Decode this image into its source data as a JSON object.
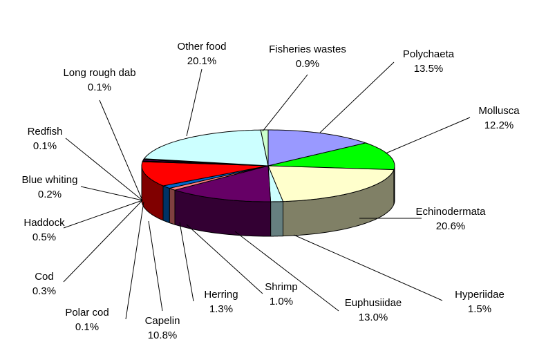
{
  "chart_data": {
    "type": "pie",
    "style": "3d",
    "start": "top",
    "direction": "clockwise",
    "legend": "none",
    "slices": [
      {
        "label": "Polychaeta",
        "value": 13.5,
        "display": "13.5%",
        "color": "#9999ff"
      },
      {
        "label": "Mollusca",
        "value": 12.2,
        "display": "12.2%",
        "color": "#00ff00"
      },
      {
        "label": "Echinodermata",
        "value": 20.6,
        "display": "20.6%",
        "color": "#ffffcc"
      },
      {
        "label": "Hyperiidae",
        "value": 1.5,
        "display": "1.5%",
        "color": "#ccffff"
      },
      {
        "label": "Euphusiidae",
        "value": 13.0,
        "display": "13.0%",
        "color": "#660066"
      },
      {
        "label": "Shrimp",
        "value": 1.0,
        "display": "1.0%",
        "color": "#ff8080"
      },
      {
        "label": "Herring",
        "value": 1.3,
        "display": "1.3%",
        "color": "#0066cc"
      },
      {
        "label": "Capelin",
        "value": 10.8,
        "display": "10.8%",
        "color": "#ff0000"
      },
      {
        "label": "Polar cod",
        "value": 0.1,
        "display": "0.1%",
        "color": "#000080"
      },
      {
        "label": "Cod",
        "value": 0.3,
        "display": "0.3%",
        "color": "#ff00ff"
      },
      {
        "label": "Haddock",
        "value": 0.5,
        "display": "0.5%",
        "color": "#800080"
      },
      {
        "label": "Blue whiting",
        "value": 0.2,
        "display": "0.2%",
        "color": "#800000"
      },
      {
        "label": "Redfish",
        "value": 0.1,
        "display": "0.1%",
        "color": "#008080"
      },
      {
        "label": "Long rough dab",
        "value": 0.1,
        "display": "0.1%",
        "color": "#0000ff"
      },
      {
        "label": "Other food",
        "value": 20.1,
        "display": "20.1%",
        "color": "#ccffff"
      },
      {
        "label": "Fisheries wastes",
        "value": 0.9,
        "display": "0.9%",
        "color": "#ccffcc"
      }
    ]
  }
}
